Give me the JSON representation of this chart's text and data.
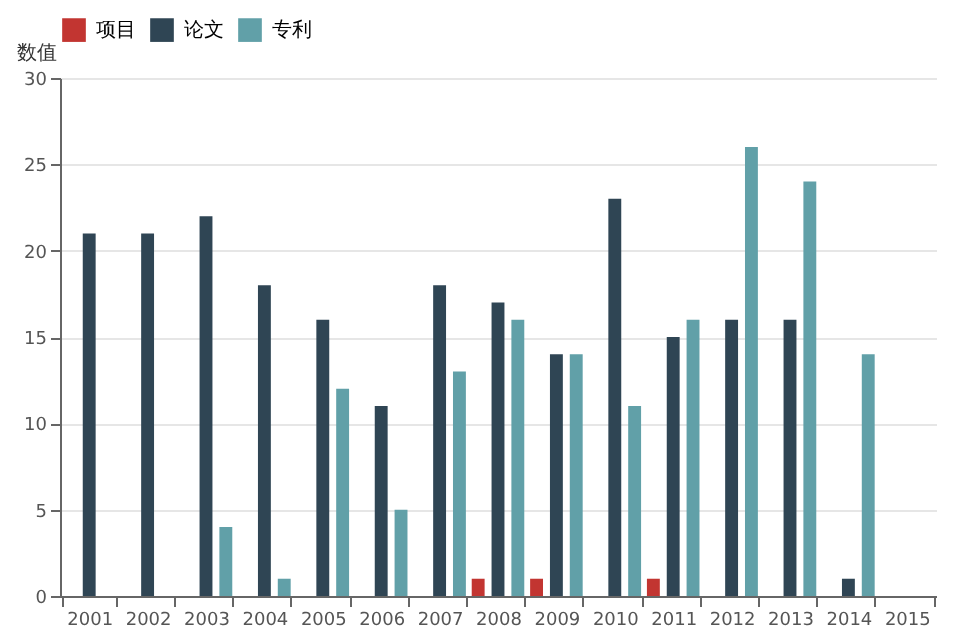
{
  "chart_data": {
    "type": "bar",
    "ylabel": "数值",
    "categories": [
      "2001",
      "2002",
      "2003",
      "2004",
      "2005",
      "2006",
      "2007",
      "2008",
      "2009",
      "2010",
      "2011",
      "2012",
      "2013",
      "2014",
      "2015"
    ],
    "series": [
      {
        "name": "项目",
        "color": "#c23531",
        "values": [
          0,
          0,
          0,
          0,
          0,
          0,
          0,
          1,
          1,
          0,
          1,
          0,
          0,
          0,
          0
        ]
      },
      {
        "name": "论文",
        "color": "#2f4554",
        "values": [
          21,
          21,
          22,
          18,
          16,
          11,
          18,
          17,
          14,
          23,
          15,
          16,
          16,
          1,
          0
        ]
      },
      {
        "name": "专利",
        "color": "#61a0a8",
        "values": [
          0,
          0,
          4,
          1,
          12,
          5,
          13,
          16,
          14,
          11,
          16,
          26,
          24,
          14,
          0
        ]
      }
    ],
    "ylim": [
      0,
      30
    ],
    "yticks": [
      0,
      5,
      10,
      15,
      20,
      25,
      30
    ],
    "grid": "y",
    "legend": "top"
  }
}
